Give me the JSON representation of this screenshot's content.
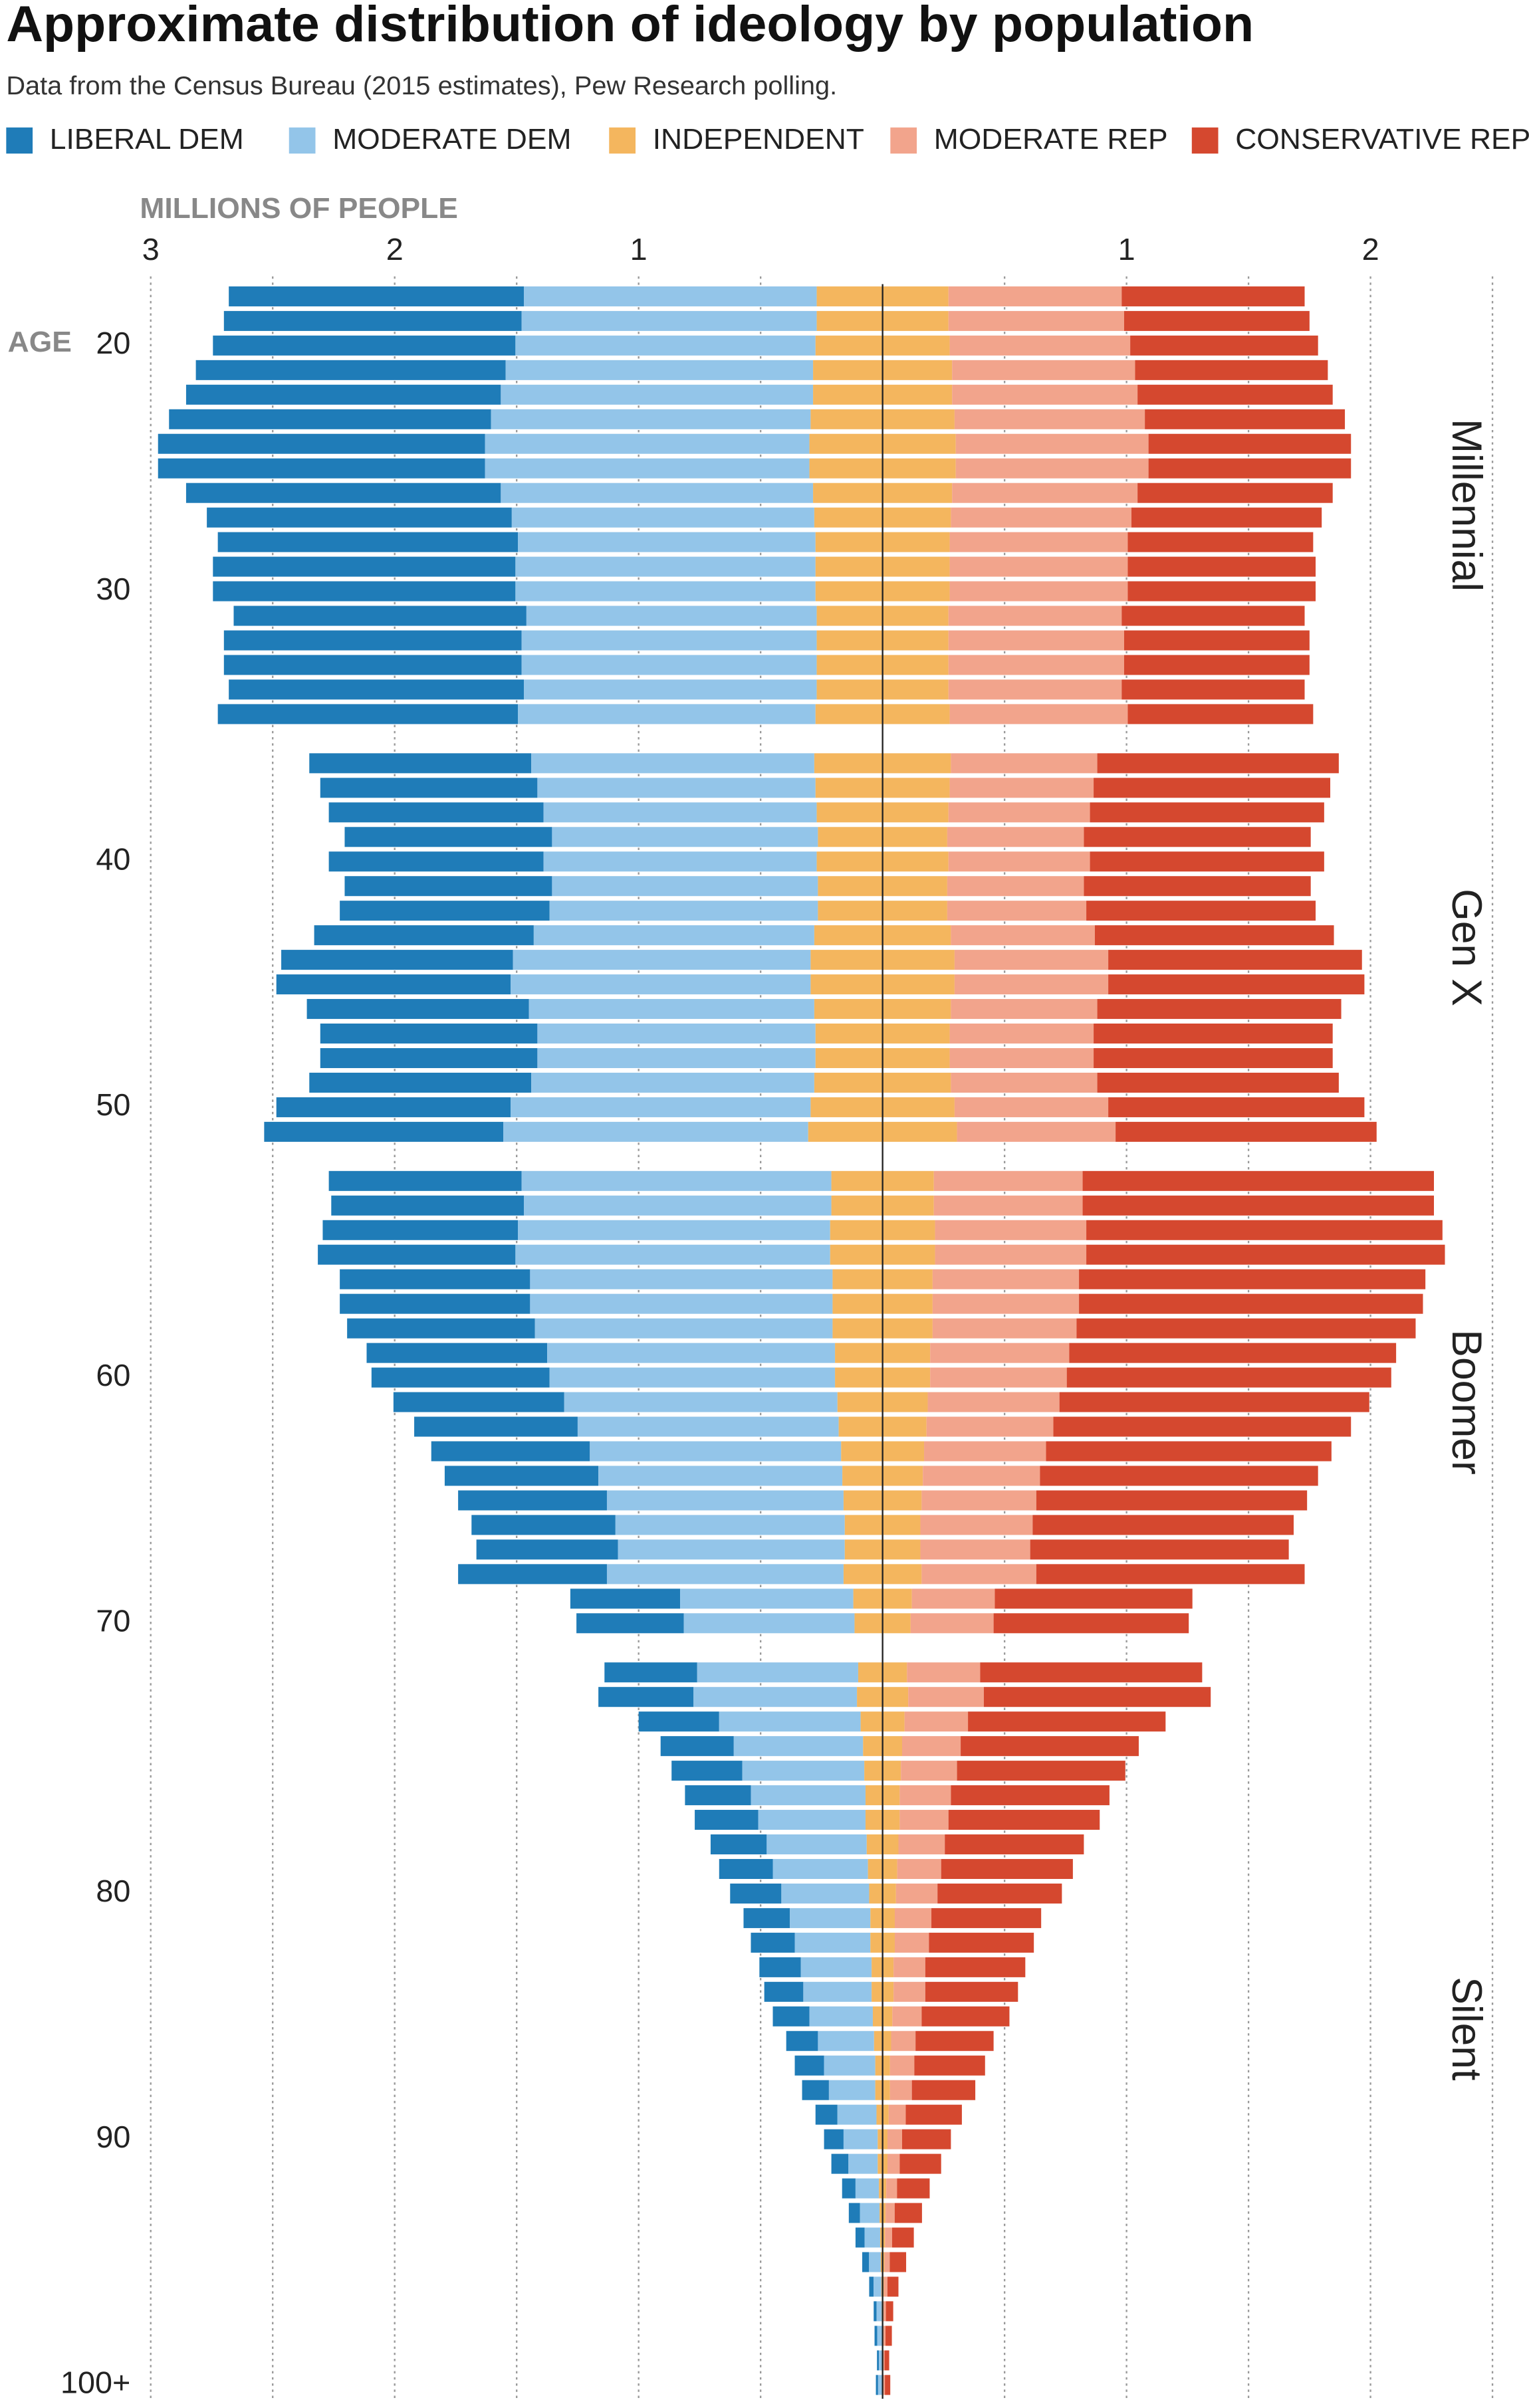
{
  "chart_data": {
    "type": "diverging-stacked-bar",
    "title": "Approximate distribution of ideology by population",
    "subtitle": "Data from the Census Bureau (2015 estimates), Pew Research polling.",
    "x_label": "MILLIONS OF PEOPLE",
    "y_label": "AGE",
    "xlim": [
      -3,
      2.5
    ],
    "xticks": [
      {
        "value": -3,
        "label": "3"
      },
      {
        "value": -2,
        "label": "2"
      },
      {
        "value": -1,
        "label": "1"
      },
      1,
      2
    ],
    "grid": [
      -3,
      -2.5,
      -2,
      -1.5,
      -1,
      -0.5,
      0.5,
      1,
      1.5,
      2,
      2.5
    ],
    "series": [
      {
        "name": "LIBERAL DEM",
        "color": "#1f7cb8"
      },
      {
        "name": "MODERATE DEM",
        "color": "#93c5e9"
      },
      {
        "name": "INDEPENDENT",
        "color": "#f4b65e"
      },
      {
        "name": "MODERATE REP",
        "color": "#f2a48c"
      },
      {
        "name": "CONSERVATIVE REP",
        "color": "#d5482f"
      }
    ],
    "groups": [
      {
        "name": "Millennial",
        "categories": [
          null,
          null,
          "20",
          null,
          null,
          null,
          null,
          null,
          null,
          null,
          null,
          null,
          "30",
          null,
          null,
          null,
          null,
          null
        ],
        "series": [
          {
            "values": [
              1.21,
              1.22,
              1.24,
              1.27,
              1.29,
              1.32,
              1.34,
              1.34,
              1.29,
              1.25,
              1.23,
              1.24,
              1.24,
              1.2,
              1.22,
              1.22,
              1.21,
              1.23
            ]
          },
          {
            "values": [
              1.2,
              1.21,
              1.23,
              1.26,
              1.28,
              1.31,
              1.33,
              1.33,
              1.28,
              1.24,
              1.22,
              1.23,
              1.23,
              1.19,
              1.21,
              1.21,
              1.2,
              1.22
            ]
          },
          {
            "values": [
              0.54,
              0.54,
              0.55,
              0.57,
              0.57,
              0.59,
              0.6,
              0.6,
              0.57,
              0.56,
              0.55,
              0.55,
              0.55,
              0.54,
              0.54,
              0.54,
              0.54,
              0.55
            ]
          },
          {
            "values": [
              0.71,
              0.72,
              0.74,
              0.75,
              0.76,
              0.78,
              0.79,
              0.79,
              0.76,
              0.74,
              0.73,
              0.73,
              0.73,
              0.71,
              0.72,
              0.72,
              0.71,
              0.73
            ]
          },
          {
            "values": [
              0.75,
              0.76,
              0.77,
              0.79,
              0.8,
              0.82,
              0.83,
              0.83,
              0.8,
              0.78,
              0.76,
              0.77,
              0.77,
              0.75,
              0.76,
              0.76,
              0.75,
              0.76
            ]
          }
        ]
      },
      {
        "name": "Gen X",
        "categories": [
          null,
          null,
          null,
          null,
          "40",
          null,
          null,
          null,
          null,
          null,
          null,
          null,
          null,
          null,
          "50",
          null
        ],
        "series": [
          {
            "values": [
              0.91,
              0.89,
              0.88,
              0.85,
              0.88,
              0.85,
              0.86,
              0.9,
              0.95,
              0.96,
              0.91,
              0.89,
              0.89,
              0.91,
              0.96,
              0.98
            ]
          },
          {
            "values": [
              1.16,
              1.14,
              1.12,
              1.09,
              1.12,
              1.09,
              1.1,
              1.15,
              1.22,
              1.23,
              1.17,
              1.14,
              1.14,
              1.16,
              1.23,
              1.25
            ]
          },
          {
            "values": [
              0.56,
              0.55,
              0.54,
              0.53,
              0.54,
              0.53,
              0.53,
              0.56,
              0.59,
              0.59,
              0.56,
              0.55,
              0.55,
              0.56,
              0.59,
              0.61
            ]
          },
          {
            "values": [
              0.6,
              0.59,
              0.58,
              0.56,
              0.58,
              0.56,
              0.57,
              0.59,
              0.63,
              0.63,
              0.6,
              0.59,
              0.59,
              0.6,
              0.63,
              0.65
            ]
          },
          {
            "values": [
              0.99,
              0.97,
              0.96,
              0.93,
              0.96,
              0.93,
              0.94,
              0.98,
              1.04,
              1.05,
              1.0,
              0.98,
              0.98,
              0.99,
              1.05,
              1.07
            ]
          }
        ]
      },
      {
        "name": "Boomer",
        "categories": [
          null,
          null,
          null,
          null,
          null,
          null,
          null,
          null,
          "60",
          null,
          null,
          null,
          null,
          null,
          null,
          null,
          null,
          null,
          "70"
        ],
        "series": [
          {
            "values": [
              0.79,
              0.79,
              0.8,
              0.81,
              0.78,
              0.78,
              0.77,
              0.74,
              0.73,
              0.7,
              0.67,
              0.65,
              0.63,
              0.61,
              0.59,
              0.58,
              0.61,
              0.45,
              0.44
            ]
          },
          {
            "values": [
              1.27,
              1.26,
              1.28,
              1.29,
              1.24,
              1.24,
              1.22,
              1.18,
              1.17,
              1.12,
              1.07,
              1.03,
              1.0,
              0.97,
              0.94,
              0.93,
              0.97,
              0.71,
              0.7
            ]
          },
          {
            "values": [
              0.42,
              0.42,
              0.43,
              0.43,
              0.41,
              0.41,
              0.41,
              0.39,
              0.39,
              0.37,
              0.36,
              0.34,
              0.33,
              0.32,
              0.31,
              0.31,
              0.32,
              0.24,
              0.23
            ]
          },
          {
            "values": [
              0.61,
              0.61,
              0.62,
              0.62,
              0.6,
              0.6,
              0.59,
              0.57,
              0.56,
              0.54,
              0.52,
              0.5,
              0.48,
              0.47,
              0.46,
              0.45,
              0.47,
              0.34,
              0.34
            ]
          },
          {
            "values": [
              1.44,
              1.44,
              1.46,
              1.47,
              1.42,
              1.41,
              1.39,
              1.34,
              1.33,
              1.27,
              1.22,
              1.17,
              1.14,
              1.11,
              1.07,
              1.06,
              1.1,
              0.81,
              0.8
            ]
          }
        ]
      },
      {
        "name": "Silent",
        "categories": [
          null,
          null,
          null,
          null,
          null,
          null,
          null,
          null,
          null,
          "80",
          null,
          null,
          null,
          null,
          null,
          null,
          null,
          null,
          null,
          "90",
          null,
          null,
          null,
          null,
          null,
          null,
          null,
          null,
          null,
          "100+"
        ],
        "series": [
          {
            "values": [
              0.38,
              0.39,
              0.33,
              0.3,
              0.29,
              0.27,
              0.26,
              0.23,
              0.22,
              0.21,
              0.19,
              0.18,
              0.17,
              0.16,
              0.15,
              0.13,
              0.12,
              0.11,
              0.09,
              0.08,
              0.07,
              0.055,
              0.046,
              0.037,
              0.028,
              0.018,
              0.012,
              0.011,
              0.008,
              0.009
            ]
          },
          {
            "values": [
              0.66,
              0.67,
              0.58,
              0.53,
              0.5,
              0.47,
              0.44,
              0.41,
              0.39,
              0.36,
              0.33,
              0.31,
              0.29,
              0.28,
              0.26,
              0.23,
              0.21,
              0.19,
              0.16,
              0.14,
              0.12,
              0.096,
              0.08,
              0.064,
              0.048,
              0.032,
              0.021,
              0.019,
              0.013,
              0.016
            ]
          },
          {
            "values": [
              0.2,
              0.21,
              0.18,
              0.16,
              0.15,
              0.14,
              0.14,
              0.13,
              0.12,
              0.11,
              0.1,
              0.1,
              0.09,
              0.09,
              0.08,
              0.07,
              0.06,
              0.06,
              0.05,
              0.04,
              0.04,
              0.03,
              0.025,
              0.02,
              0.015,
              0.01,
              0.007,
              0.006,
              0.004,
              0.005
            ]
          },
          {
            "values": [
              0.3,
              0.31,
              0.26,
              0.24,
              0.23,
              0.21,
              0.2,
              0.19,
              0.18,
              0.17,
              0.15,
              0.14,
              0.13,
              0.13,
              0.12,
              0.1,
              0.1,
              0.09,
              0.07,
              0.06,
              0.05,
              0.044,
              0.037,
              0.029,
              0.022,
              0.015,
              0.01,
              0.009,
              0.006,
              0.007
            ]
          },
          {
            "values": [
              0.91,
              0.93,
              0.81,
              0.73,
              0.69,
              0.65,
              0.62,
              0.57,
              0.54,
              0.51,
              0.45,
              0.43,
              0.41,
              0.38,
              0.36,
              0.32,
              0.29,
              0.26,
              0.23,
              0.2,
              0.17,
              0.134,
              0.112,
              0.089,
              0.067,
              0.045,
              0.03,
              0.026,
              0.019,
              0.022
            ]
          }
        ]
      }
    ]
  }
}
